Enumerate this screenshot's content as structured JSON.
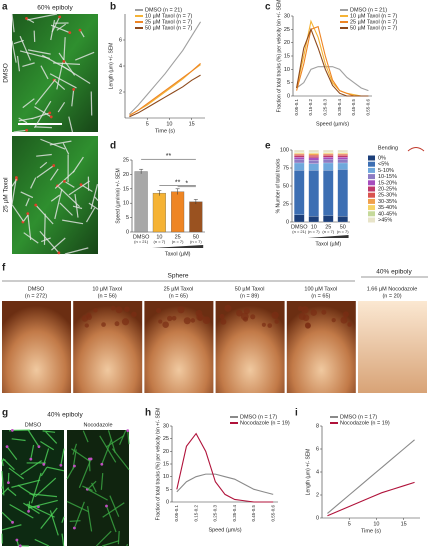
{
  "panels": {
    "letters": [
      "a",
      "b",
      "c",
      "d",
      "e",
      "f",
      "g",
      "h",
      "i"
    ],
    "a": {
      "title": "60% epiboly",
      "rows": [
        "DMSO",
        "25 µM Taxol"
      ]
    },
    "f": {
      "group1": "Sphere",
      "group2": "40% epiboly",
      "images": [
        {
          "label": "DMSO",
          "n": "(n = 272)"
        },
        {
          "label": "10 µM Taxol",
          "n": "(n = 56)"
        },
        {
          "label": "25 µM Taxol",
          "n": "(n = 65)"
        },
        {
          "label": "50 µM Taxol",
          "n": "(n = 89)"
        },
        {
          "label": "100 µM Taxol",
          "n": "(n = 65)"
        },
        {
          "label": "1.66 µM Nocodazole",
          "n": "(n = 20)"
        }
      ]
    },
    "g": {
      "title": "40% epiboly",
      "columns": [
        "DMSO",
        "Nocodazole"
      ]
    }
  },
  "chart_data": [
    {
      "type": "line",
      "y_label": "Length (µm) +/- SEM",
      "x_label": "Time (s)",
      "x": [
        1,
        3,
        5,
        7,
        9,
        11,
        13,
        15,
        17
      ],
      "xlim": [
        0,
        18
      ],
      "xticks": [
        5,
        10,
        15
      ],
      "ylim": [
        0,
        8
      ],
      "yticks": [
        2,
        4,
        6
      ],
      "series": [
        {
          "name": "DMSO (n = 21)",
          "color": "#a0a0a0",
          "values": [
            0.3,
            1,
            1.8,
            2.6,
            3.4,
            4.3,
            5.2,
            6.3,
            7.4
          ]
        },
        {
          "name": "10 µM Taxol (n = 7)",
          "color": "#f5b335",
          "values": [
            0.2,
            0.6,
            1,
            1.5,
            2,
            2.5,
            3,
            3.6,
            4.1
          ]
        },
        {
          "name": "25 µM Taxol (n = 7)",
          "color": "#ee8524",
          "values": [
            0.2,
            0.6,
            1.1,
            1.6,
            2.1,
            2.6,
            3.1,
            3.6,
            4.2
          ]
        },
        {
          "name": "50 µM Taxol (n = 7)",
          "color": "#8e4a1c",
          "values": [
            0.1,
            0.4,
            0.8,
            1.2,
            1.6,
            2,
            2.4,
            2.9,
            3.3
          ]
        }
      ]
    },
    {
      "type": "line",
      "y_label": "Fraction of total tracks (%) per velocity bin +/- SEM",
      "x_label": "Speed (µm/s)",
      "categories": [
        "0.05-0.1",
        null,
        "0.15-0.2",
        null,
        "0.25-0.3",
        null,
        "0.35-0.4",
        null,
        "0.45-0.5",
        null,
        "0.55-0.6"
      ],
      "ylim": [
        0,
        30
      ],
      "yticks": [
        0,
        5,
        10,
        15,
        20,
        25,
        30
      ],
      "series": [
        {
          "name": "DMSO (n = 21)",
          "color": "#a0a0a0",
          "values": [
            3,
            5,
            10,
            11,
            11,
            11,
            10,
            7,
            5,
            3,
            2
          ]
        },
        {
          "name": "10 µM Taxol (n = 7)",
          "color": "#f5b335",
          "values": [
            3,
            15,
            28,
            22,
            12,
            5,
            2,
            1,
            0.5,
            0,
            0
          ]
        },
        {
          "name": "25 µM Taxol (n = 7)",
          "color": "#ee8524",
          "values": [
            2,
            12,
            25,
            26,
            15,
            6,
            2,
            1,
            0,
            0,
            0
          ]
        },
        {
          "name": "50 µM Taxol (n = 7)",
          "color": "#8e4a1c",
          "values": [
            3,
            18,
            25,
            18,
            10,
            4,
            1,
            0,
            0,
            0,
            0
          ]
        }
      ]
    },
    {
      "type": "bar",
      "y_label": "Speed (µm/min) +/- SEM",
      "group_label": "Taxol (µM)",
      "categories": [
        "DMSO",
        "10",
        "25",
        "50"
      ],
      "sublabels": [
        "(n = 21)",
        "(n = 7)",
        "(n = 7)",
        "(n = 7)"
      ],
      "values": [
        21,
        13.5,
        14,
        10.5
      ],
      "errors": [
        0.8,
        0.9,
        1,
        0.8
      ],
      "colors": [
        "#a8a8a8",
        "#f5b335",
        "#ee8524",
        "#9a5220"
      ],
      "ylim": [
        0,
        25
      ],
      "yticks": [
        0,
        5,
        10,
        15,
        20,
        25
      ],
      "annotations": [
        "**",
        "**",
        "*"
      ]
    },
    {
      "type": "stacked_bar",
      "y_label": "% Number of total tracks",
      "group_label": "Taxol (µM)",
      "legend_title": "Bending",
      "categories": [
        "DMSO",
        "10",
        "25",
        "50"
      ],
      "sublabels": [
        "(n = 21)",
        "(n = 7)",
        "(n = 7)",
        "(n = 7)"
      ],
      "ylim": [
        0,
        100
      ],
      "yticks": [
        0,
        25,
        50,
        75,
        100
      ],
      "series": [
        {
          "name": "0%",
          "color": "#1c3f7a",
          "values": [
            10,
            8,
            9,
            8
          ]
        },
        {
          "name": "<5%",
          "color": "#3d6fb3",
          "values": [
            62,
            64,
            63,
            65
          ]
        },
        {
          "name": "5-10%",
          "color": "#6fa8dc",
          "values": [
            10,
            9,
            10,
            9
          ]
        },
        {
          "name": "10-15%",
          "color": "#8e7cc3",
          "values": [
            5,
            5,
            5,
            5
          ]
        },
        {
          "name": "15-20%",
          "color": "#a64dbd",
          "values": [
            3,
            3,
            3,
            3
          ]
        },
        {
          "name": "20-25%",
          "color": "#c0396b",
          "values": [
            2,
            2,
            2,
            2
          ]
        },
        {
          "name": "25-30%",
          "color": "#d9534f",
          "values": [
            2,
            2,
            2,
            2
          ]
        },
        {
          "name": "30-35%",
          "color": "#f0a04b",
          "values": [
            1,
            2,
            1,
            1
          ]
        },
        {
          "name": "35-40%",
          "color": "#f6d365",
          "values": [
            1,
            1,
            1,
            1
          ]
        },
        {
          "name": "40-45%",
          "color": "#c5d99a",
          "values": [
            1,
            1,
            1,
            1
          ]
        },
        {
          "name": ">45%",
          "color": "#e8e4c9",
          "values": [
            3,
            3,
            3,
            3
          ]
        }
      ]
    },
    {
      "type": "line",
      "y_label": "Fraction of total tracks (%) per velocity bin +/- SEM",
      "x_label": "Speed (µm/s)",
      "categories": [
        "0.05-0.1",
        null,
        "0.15-0.2",
        null,
        "0.25-0.3",
        null,
        "0.35-0.4",
        null,
        "0.45-0.5",
        null,
        "0.55-0.6"
      ],
      "ylim": [
        0,
        30
      ],
      "yticks": [
        0,
        5,
        10,
        15,
        20,
        25,
        30
      ],
      "series": [
        {
          "name": "DMSO (n = 17)",
          "color": "#8a8a8a",
          "values": [
            4,
            8,
            10,
            11,
            11,
            10,
            9,
            7,
            5,
            4,
            3
          ]
        },
        {
          "name": "Nocodazole (n = 19)",
          "color": "#b0123a",
          "values": [
            5,
            22,
            27,
            20,
            8,
            3,
            1,
            0.5,
            0,
            0,
            0
          ]
        }
      ]
    },
    {
      "type": "line",
      "y_label": "Length (µm) +/- SEM",
      "x_label": "Time (s)",
      "x": [
        1,
        3,
        5,
        7,
        9,
        11,
        13,
        15,
        17
      ],
      "xlim": [
        0,
        18
      ],
      "xticks": [
        5,
        10,
        15
      ],
      "ylim": [
        0,
        8
      ],
      "yticks": [
        0,
        2,
        4,
        6,
        8
      ],
      "series": [
        {
          "name": "DMSO (n = 17)",
          "color": "#8a8a8a",
          "values": [
            0.4,
            1.2,
            2,
            2.8,
            3.6,
            4.4,
            5.2,
            6,
            6.8
          ]
        },
        {
          "name": "Nocodazole (n = 19)",
          "color": "#b0123a",
          "values": [
            0.2,
            0.6,
            1,
            1.4,
            1.8,
            2.2,
            2.5,
            2.8,
            3.1
          ]
        }
      ]
    }
  ]
}
